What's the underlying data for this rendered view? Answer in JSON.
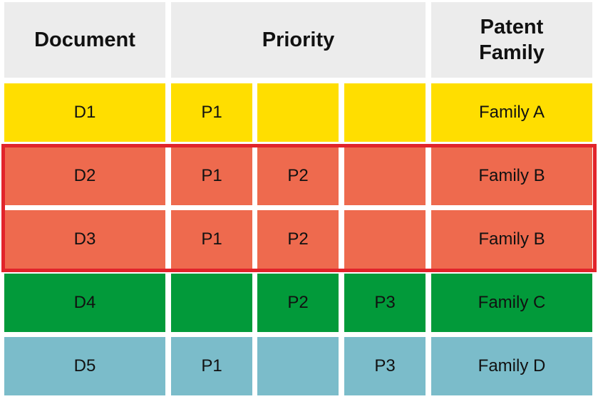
{
  "header": {
    "document": "Document",
    "priority": "Priority",
    "patent_family": "Patent\nFamily"
  },
  "rows": [
    {
      "document": "D1",
      "p1": "P1",
      "p2": "",
      "p3": "",
      "family": "Family A",
      "color": "#ffde00"
    },
    {
      "document": "D2",
      "p1": "P1",
      "p2": "P2",
      "p3": "",
      "family": "Family B",
      "color": "#ee6a4e"
    },
    {
      "document": "D3",
      "p1": "P1",
      "p2": "P2",
      "p3": "",
      "family": "Family B",
      "color": "#ee6a4e"
    },
    {
      "document": "D4",
      "p1": "",
      "p2": "P2",
      "p3": "P3",
      "family": "Family C",
      "color": "#029a3a"
    },
    {
      "document": "D5",
      "p1": "P1",
      "p2": "",
      "p3": "P3",
      "family": "Family D",
      "color": "#7bbcca"
    }
  ],
  "highlight": {
    "color": "#e1242b",
    "rows": [
      "D2",
      "D3"
    ]
  }
}
